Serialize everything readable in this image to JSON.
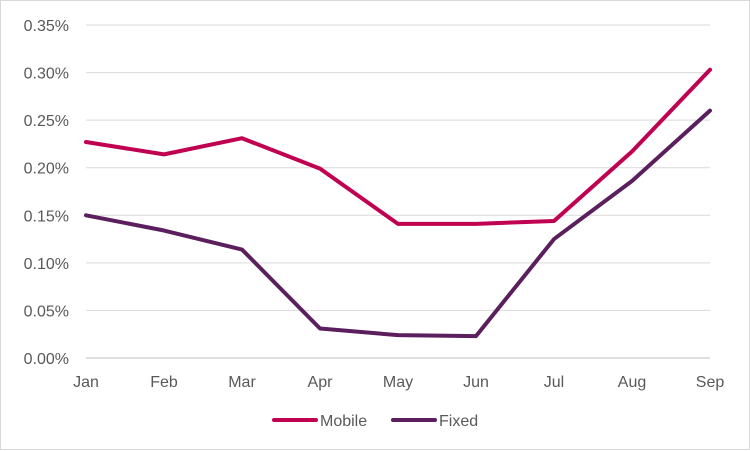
{
  "chart_data": {
    "type": "line",
    "categories": [
      "Jan",
      "Feb",
      "Mar",
      "Apr",
      "May",
      "Jun",
      "Jul",
      "Aug",
      "Sep"
    ],
    "series": [
      {
        "name": "Mobile",
        "color": "#c00050",
        "values": [
          0.00227,
          0.00214,
          0.00231,
          0.00199,
          0.00141,
          0.00141,
          0.00144,
          0.00217,
          0.00303
        ]
      },
      {
        "name": "Fixed",
        "color": "#5b1f5e",
        "values": [
          0.0015,
          0.00134,
          0.00114,
          0.00031,
          0.00024,
          0.00023,
          0.00125,
          0.00186,
          0.0026
        ]
      }
    ],
    "y_ticks": [
      "0.00%",
      "0.05%",
      "0.10%",
      "0.15%",
      "0.20%",
      "0.25%",
      "0.30%",
      "0.35%"
    ],
    "ylim": [
      0,
      0.0035
    ],
    "grid": true,
    "legend_position": "bottom",
    "title": "",
    "xlabel": "",
    "ylabel": ""
  },
  "colors": {
    "gridline": "#d9d9d9",
    "axis": "#bfbfbf",
    "text": "#595959"
  }
}
